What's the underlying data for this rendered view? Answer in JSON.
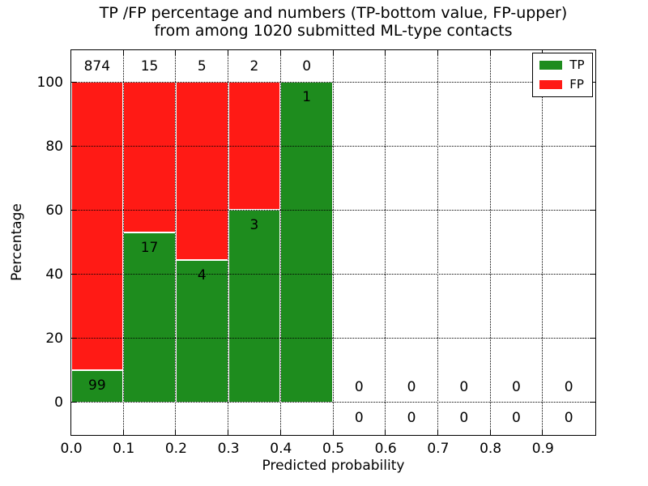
{
  "figure": {
    "title_line1": "TP /FP percentage and numbers (TP-bottom value, FP-upper)",
    "title_line2": "from among 1020 submitted ML-type contacts",
    "background_color": "#ffffff"
  },
  "chart_data": {
    "type": "bar",
    "stacked": true,
    "title": "TP /FP percentage and numbers (TP-bottom value, FP-upper)\nfrom among 1020 submitted ML-type contacts",
    "xlabel": "Predicted probability",
    "ylabel": "Percentage",
    "xlim": [
      0.0,
      1.0
    ],
    "ylim": [
      -10,
      110
    ],
    "grid": "dotted",
    "grid_over_bars": true,
    "tick_direction": "in",
    "x_tick_values": [
      0.0,
      0.1,
      0.2,
      0.3,
      0.4,
      0.5,
      0.6,
      0.7,
      0.8,
      0.9
    ],
    "x_tick_labels": [
      "0.0",
      "0.1",
      "0.2",
      "0.3",
      "0.4",
      "0.5",
      "0.6",
      "0.7",
      "0.8",
      "0.9"
    ],
    "y_tick_values": [
      0,
      20,
      40,
      60,
      80,
      100
    ],
    "y_tick_labels": [
      "0",
      "20",
      "40",
      "60",
      "80",
      "100"
    ],
    "total_contacts": 1020,
    "series": [
      {
        "name": "TP",
        "color": "#1e8c1e",
        "counts": [
          99,
          17,
          4,
          3,
          1,
          0,
          0,
          0,
          0,
          0
        ]
      },
      {
        "name": "FP",
        "color": "#ff1a15",
        "counts": [
          874,
          15,
          5,
          2,
          0,
          0,
          0,
          0,
          0,
          0
        ]
      }
    ],
    "bins": [
      {
        "range": [
          0.0,
          0.1
        ],
        "tp_count": 99,
        "fp_count": 874,
        "tp_pct": 10.17,
        "fp_pct": 89.83,
        "tp_label": "99",
        "fp_label": "874"
      },
      {
        "range": [
          0.1,
          0.2
        ],
        "tp_count": 17,
        "fp_count": 15,
        "tp_pct": 53.13,
        "fp_pct": 46.87,
        "tp_label": "17",
        "fp_label": "15"
      },
      {
        "range": [
          0.2,
          0.3
        ],
        "tp_count": 4,
        "fp_count": 5,
        "tp_pct": 44.44,
        "fp_pct": 55.56,
        "tp_label": "4",
        "fp_label": "5"
      },
      {
        "range": [
          0.3,
          0.4
        ],
        "tp_count": 3,
        "fp_count": 2,
        "tp_pct": 60.0,
        "fp_pct": 40.0,
        "tp_label": "3",
        "fp_label": "2"
      },
      {
        "range": [
          0.4,
          0.5
        ],
        "tp_count": 1,
        "fp_count": 0,
        "tp_pct": 100.0,
        "fp_pct": 0.0,
        "tp_label": "1",
        "fp_label": "0"
      },
      {
        "range": [
          0.5,
          0.6
        ],
        "tp_count": 0,
        "fp_count": 0,
        "tp_pct": 0.0,
        "fp_pct": 0.0,
        "tp_label": "0",
        "fp_label": "0"
      },
      {
        "range": [
          0.6,
          0.7
        ],
        "tp_count": 0,
        "fp_count": 0,
        "tp_pct": 0.0,
        "fp_pct": 0.0,
        "tp_label": "0",
        "fp_label": "0"
      },
      {
        "range": [
          0.7,
          0.8
        ],
        "tp_count": 0,
        "fp_count": 0,
        "tp_pct": 0.0,
        "fp_pct": 0.0,
        "tp_label": "0",
        "fp_label": "0"
      },
      {
        "range": [
          0.8,
          0.9
        ],
        "tp_count": 0,
        "fp_count": 0,
        "tp_pct": 0.0,
        "fp_pct": 0.0,
        "tp_label": "0",
        "fp_label": "0"
      },
      {
        "range": [
          0.9,
          1.0
        ],
        "tp_count": 0,
        "fp_count": 0,
        "tp_pct": 0.0,
        "fp_pct": 0.0,
        "tp_label": "0",
        "fp_label": "0"
      }
    ],
    "annotation_offset_pct": 4.8,
    "legend": {
      "position": "upper right",
      "entries": [
        {
          "label": "TP",
          "color": "#1e8c1e"
        },
        {
          "label": "FP",
          "color": "#ff1a15"
        }
      ]
    }
  }
}
